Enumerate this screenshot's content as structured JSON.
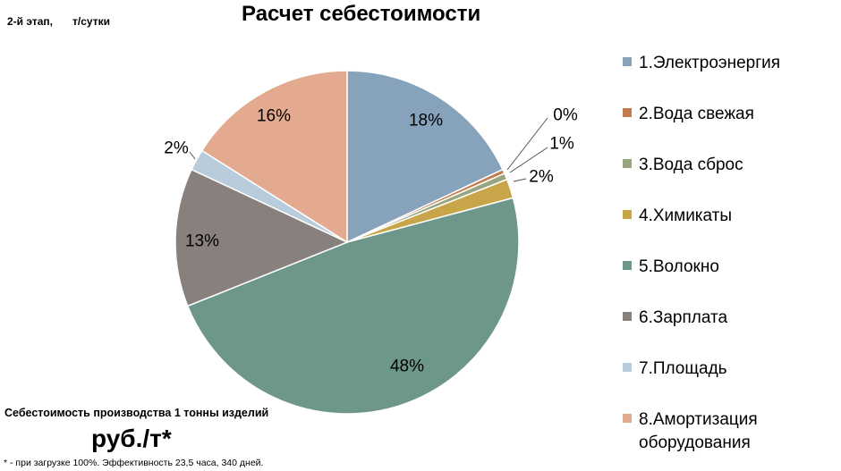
{
  "header": {
    "stage": "2-й этап,",
    "unit": "т/сутки"
  },
  "chart_data": {
    "type": "pie",
    "title": "Расчет себестоимости",
    "categories": [
      "1.Электроэнергия",
      "2.Вода свежая",
      "3.Вода сброс",
      "4.Химикаты",
      "5.Волокно",
      "6.Зарплата",
      "7.Площадь",
      "8.Амортизация оборудования"
    ],
    "values": [
      18,
      0.4,
      0.6,
      1.8,
      48,
      13,
      2,
      16
    ],
    "data_labels": [
      "18%",
      "0%",
      "1%",
      "2%",
      "48%",
      "13%",
      "2%",
      "16%"
    ],
    "colors": [
      "#87A3BC",
      "#C47A4A",
      "#97A67F",
      "#C9A54A",
      "#6C978A",
      "#87807C",
      "#B8CCDC",
      "#E4AA90"
    ],
    "legend_position": "right",
    "start_angle_deg": 0,
    "direction": "clockwise"
  },
  "cost": {
    "title": "Себестоимость производства 1 тонны изделий",
    "unit": "руб./т*"
  },
  "footnote": "* - при загрузке 100%. Эффективность 23,5 часа, 340 дней."
}
